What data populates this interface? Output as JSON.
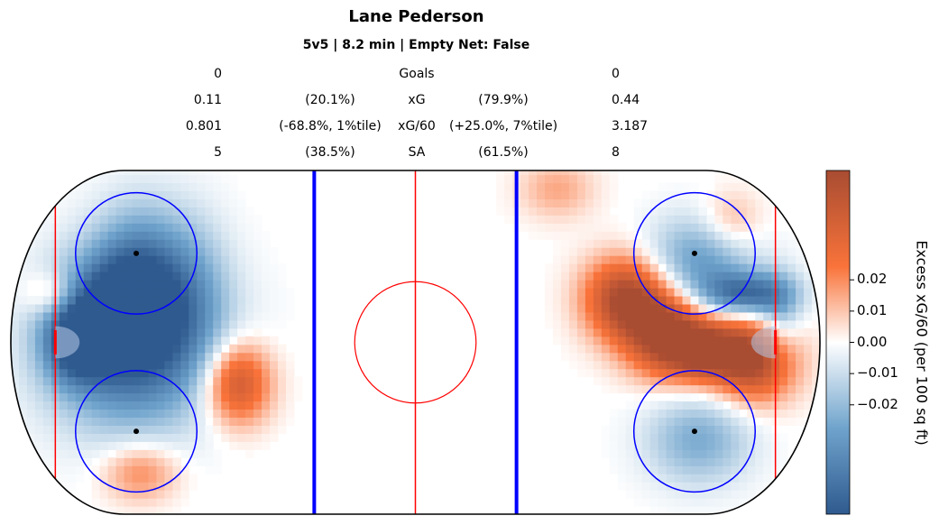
{
  "chart_data": {
    "type": "heatmap",
    "title": "Lane Pederson",
    "subtitle": "5v5 | 8.2 min | Empty Net: False",
    "stats_table": {
      "rows": [
        {
          "label": "Goals",
          "left_value": "0",
          "left_pct": "",
          "right_pct": "",
          "right_value": "0"
        },
        {
          "label": "xG",
          "left_value": "0.11",
          "left_pct": "(20.1%)",
          "right_pct": "(79.9%)",
          "right_value": "0.44"
        },
        {
          "label": "xG/60",
          "left_value": "0.801",
          "left_pct": "(-68.8%, 1%tile)",
          "right_pct": "(+25.0%, 7%tile)",
          "right_value": "3.187"
        },
        {
          "label": "SA",
          "left_value": "5",
          "left_pct": "(38.5%)",
          "right_pct": "(61.5%)",
          "right_value": "8"
        }
      ]
    },
    "colorbar": {
      "label": "Excess xG/60 (per 100 sq ft)",
      "ticks": [
        "0.02",
        "0.01",
        "0.00",
        "−0.01",
        "−0.02"
      ],
      "tick_values": [
        0.02,
        0.01,
        0.0,
        -0.01,
        -0.02
      ],
      "range": [
        -0.055,
        0.055
      ],
      "colors": {
        "low": "#2f5a8f",
        "mid": "#ffffff",
        "high": "#a84c32"
      }
    },
    "rink": {
      "x_range": [
        -100,
        100
      ],
      "y_range": [
        -42.5,
        42.5
      ],
      "colors": {
        "boards": "#000000",
        "blue_line": "#0000ff",
        "red_line": "#ff0000",
        "faceoff": "#0000ff",
        "dot": "#000000"
      }
    },
    "hotspots": [
      {
        "x": -70,
        "y": 0,
        "sx": 11,
        "sy": 11,
        "v": -0.055
      },
      {
        "x": -75,
        "y": 8,
        "sx": 7,
        "sy": 7,
        "v": -0.03
      },
      {
        "x": -68,
        "y": 18,
        "sx": 6,
        "sy": 9,
        "v": -0.03
      },
      {
        "x": -84,
        "y": 0,
        "sx": 4,
        "sy": 5,
        "v": -0.04
      },
      {
        "x": -55,
        "y": 14,
        "sx": 5,
        "sy": 10,
        "v": -0.015
      },
      {
        "x": -90,
        "y": 12,
        "sx": 3.5,
        "sy": 3,
        "v": 0.02
      },
      {
        "x": -68,
        "y": -32,
        "sx": 5,
        "sy": 4,
        "v": 0.022
      },
      {
        "x": -44,
        "y": -10,
        "sx": 4.5,
        "sy": 5.5,
        "v": 0.045
      },
      {
        "x": 35,
        "y": 38,
        "sx": 5,
        "sy": 4,
        "v": 0.015
      },
      {
        "x": 52,
        "y": 11,
        "sx": 5.5,
        "sy": 5.5,
        "v": 0.055
      },
      {
        "x": 62,
        "y": 2,
        "sx": 5.5,
        "sy": 5.5,
        "v": 0.055
      },
      {
        "x": 72,
        "y": -2,
        "sx": 5,
        "sy": 4,
        "v": 0.045
      },
      {
        "x": 84,
        "y": -4,
        "sx": 5.5,
        "sy": 5.5,
        "v": 0.055
      },
      {
        "x": 82,
        "y": 12,
        "sx": 6,
        "sy": 3,
        "v": -0.045
      },
      {
        "x": 70,
        "y": 20,
        "sx": 7,
        "sy": 6,
        "v": -0.03
      },
      {
        "x": 70,
        "y": -24,
        "sx": 7,
        "sy": 6,
        "v": -0.025
      },
      {
        "x": 90,
        "y": 6,
        "sx": 3,
        "sy": 6,
        "v": -0.02
      },
      {
        "x": 78,
        "y": 30,
        "sx": 4,
        "sy": 4,
        "v": 0.015
      }
    ]
  }
}
